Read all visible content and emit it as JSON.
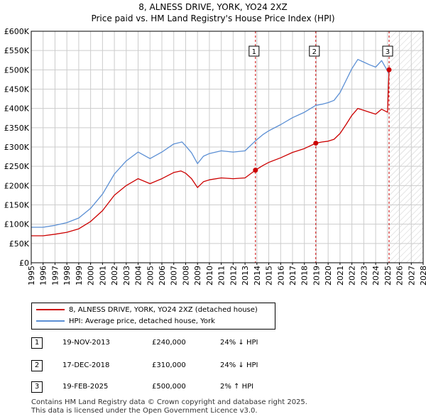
{
  "title_line1": "8, ALNESS DRIVE, YORK, YO24 2XZ",
  "title_line2": "Price paid vs. HM Land Registry's House Price Index (HPI)",
  "colors": {
    "property": "#cc0000",
    "hpi": "#5b8fd4",
    "marker_line": "#cc0000",
    "grid": "#cccccc"
  },
  "chart_data": {
    "type": "line",
    "xlim": [
      1995,
      2028
    ],
    "ylim": [
      0,
      600000
    ],
    "yticks": [
      0,
      50000,
      100000,
      150000,
      200000,
      250000,
      300000,
      350000,
      400000,
      450000,
      500000,
      550000,
      600000
    ],
    "ytick_labels": [
      "£0",
      "£50K",
      "£100K",
      "£150K",
      "£200K",
      "£250K",
      "£300K",
      "£350K",
      "£400K",
      "£450K",
      "£500K",
      "£550K",
      "£600K"
    ],
    "xticks": [
      1995,
      1996,
      1997,
      1998,
      1999,
      2000,
      2001,
      2002,
      2003,
      2004,
      2005,
      2006,
      2007,
      2008,
      2009,
      2010,
      2011,
      2012,
      2013,
      2014,
      2015,
      2016,
      2017,
      2018,
      2019,
      2020,
      2021,
      2022,
      2023,
      2024,
      2025,
      2026,
      2027,
      2028
    ],
    "xtick_labels": [
      "1995",
      "1996",
      "1997",
      "1998",
      "1999",
      "2000",
      "2001",
      "2002",
      "2003",
      "2004",
      "2005",
      "2006",
      "2007",
      "2008",
      "2009",
      "2010",
      "2011",
      "2012",
      "2013",
      "2014",
      "2015",
      "2016",
      "2017",
      "2018",
      "2019",
      "2020",
      "2021",
      "2022",
      "2023",
      "2024",
      "2025",
      "2026",
      "2027",
      "2028"
    ],
    "grid": true,
    "hatch_from": 2025.13,
    "series": [
      {
        "name": "8, ALNESS DRIVE, YORK, YO24 2XZ (detached house)",
        "color": "#cc0000",
        "x": [
          1995.0,
          1996.0,
          1997.0,
          1998.0,
          1999.0,
          2000.0,
          2001.0,
          2002.0,
          2003.0,
          2004.0,
          2005.0,
          2006.0,
          2007.0,
          2007.6,
          2008.0,
          2008.5,
          2009.0,
          2009.5,
          2010.0,
          2011.0,
          2012.0,
          2013.0,
          2013.88,
          2014.5,
          2015.0,
          2016.0,
          2017.0,
          2018.0,
          2018.96,
          2019.5,
          2020.0,
          2020.5,
          2021.0,
          2021.5,
          2022.0,
          2022.5,
          2023.0,
          2023.5,
          2024.0,
          2024.5,
          2025.0,
          2025.13
        ],
        "y": [
          70000,
          70000,
          74000,
          79000,
          88000,
          107000,
          135000,
          175000,
          200000,
          218000,
          205000,
          218000,
          234000,
          238000,
          232000,
          218000,
          195000,
          210000,
          215000,
          220000,
          218000,
          220000,
          240000,
          252000,
          260000,
          272000,
          286000,
          296000,
          310000,
          313000,
          315000,
          320000,
          335000,
          358000,
          382000,
          400000,
          395000,
          390000,
          385000,
          398000,
          390000,
          500000
        ]
      },
      {
        "name": "HPI: Average price, detached house, York",
        "color": "#5b8fd4",
        "x": [
          1995.0,
          1996.0,
          1997.0,
          1998.0,
          1999.0,
          2000.0,
          2001.0,
          2002.0,
          2003.0,
          2004.0,
          2005.0,
          2006.0,
          2007.0,
          2007.7,
          2008.0,
          2008.5,
          2009.0,
          2009.5,
          2010.0,
          2011.0,
          2012.0,
          2013.0,
          2013.88,
          2014.5,
          2015.0,
          2016.0,
          2017.0,
          2018.0,
          2018.96,
          2019.5,
          2020.0,
          2020.5,
          2021.0,
          2021.5,
          2022.0,
          2022.5,
          2023.0,
          2023.5,
          2024.0,
          2024.5,
          2025.13
        ],
        "y": [
          92000,
          92000,
          97000,
          104000,
          116000,
          141000,
          178000,
          230000,
          264000,
          287000,
          270000,
          287000,
          308000,
          313000,
          303000,
          285000,
          257000,
          276000,
          283000,
          290000,
          287000,
          290000,
          316000,
          332000,
          342000,
          358000,
          376000,
          390000,
          408000,
          411000,
          415000,
          421000,
          441000,
          472000,
          503000,
          527000,
          520000,
          513000,
          507000,
          524000,
          490000
        ]
      }
    ],
    "transactions": [
      {
        "n": "1",
        "x": 2013.88,
        "price": 240000,
        "date": "19-NOV-2013",
        "price_label": "£240,000",
        "hpi": "24% ↓ HPI"
      },
      {
        "n": "2",
        "x": 2018.96,
        "price": 310000,
        "date": "17-DEC-2018",
        "price_label": "£310,000",
        "hpi": "24% ↓ HPI"
      },
      {
        "n": "3",
        "x": 2025.13,
        "price": 500000,
        "date": "19-FEB-2025",
        "price_label": "£500,000",
        "hpi": "2% ↑ HPI"
      }
    ]
  },
  "legend": {
    "property_label": "8, ALNESS DRIVE, YORK, YO24 2XZ (detached house)",
    "hpi_label": "HPI: Average price, detached house, York"
  },
  "footer_line1": "Contains HM Land Registry data © Crown copyright and database right 2025.",
  "footer_line2": "This data is licensed under the Open Government Licence v3.0."
}
